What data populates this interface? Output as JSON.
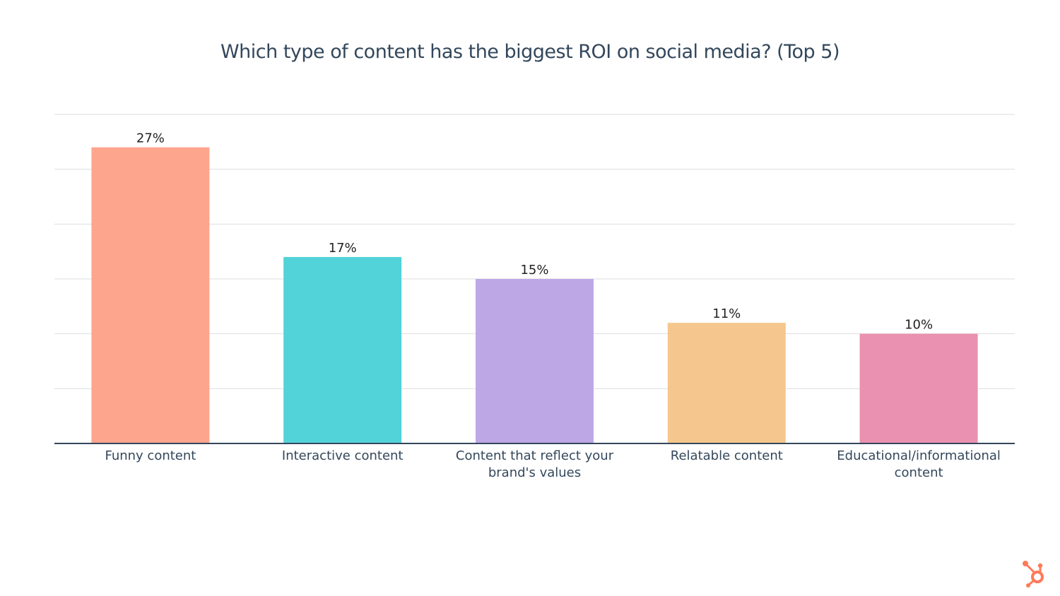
{
  "chart_data": {
    "type": "bar",
    "title": "Which type of content has the biggest ROI on social media? (Top 5)",
    "categories": [
      "Funny content",
      "Interactive content",
      "Content that reflect your brand's values",
      "Relatable content",
      "Educational/informational content"
    ],
    "category_lines": [
      [
        "Funny content"
      ],
      [
        "Interactive content"
      ],
      [
        "Content that reflect your",
        "brand's values"
      ],
      [
        "Relatable content"
      ],
      [
        "Educational/informational",
        "content"
      ]
    ],
    "values": [
      27,
      17,
      15,
      11,
      10
    ],
    "data_labels": [
      "27%",
      "17%",
      "15%",
      "11%",
      "10%"
    ],
    "colors": [
      "#fea58e",
      "#51d3d9",
      "#bea7e5",
      "#f5c78e",
      "#ea90b1"
    ],
    "ylim": [
      0,
      30
    ],
    "grid": true,
    "ytick_step": 5,
    "xlabel": "",
    "ylabel": ""
  },
  "brand": {
    "logo": "hubspot-sprocket-icon",
    "color": "#ff7a59"
  }
}
